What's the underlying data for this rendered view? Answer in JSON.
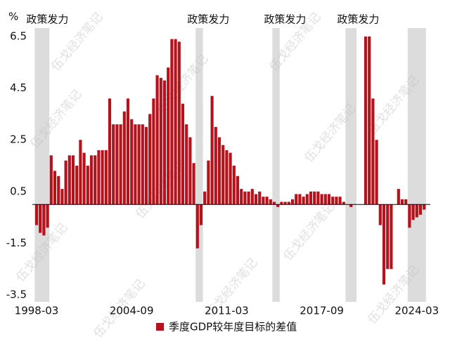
{
  "chart_data": {
    "type": "bar",
    "y_label": "%",
    "legend": "季度GDP较年度目标的差值",
    "watermark": "伍戈经济笔记",
    "color": "#b5121b",
    "shade_color": "#dcdcdc",
    "ylim": [
      -3.5,
      6.5
    ],
    "yticks": [
      -3.5,
      -1.5,
      0.5,
      2.5,
      4.5,
      6.5
    ],
    "shaded": [
      {
        "range": [
          0,
          3
        ],
        "label": "政策发力"
      },
      {
        "range": [
          44,
          45
        ],
        "label": "政策发力"
      },
      {
        "range": [
          65,
          66
        ],
        "label": "政策发力"
      },
      {
        "range": [
          85,
          87
        ],
        "label": "政策发力"
      },
      {
        "range": [
          102,
          106
        ]
      }
    ],
    "categories": [
      "1998-03",
      null,
      null,
      null,
      null,
      null,
      null,
      null,
      null,
      null,
      null,
      null,
      null,
      null,
      null,
      null,
      null,
      null,
      null,
      null,
      null,
      null,
      null,
      null,
      null,
      null,
      "2004-09",
      null,
      null,
      null,
      null,
      null,
      null,
      null,
      null,
      null,
      null,
      null,
      null,
      null,
      null,
      null,
      null,
      null,
      null,
      null,
      null,
      null,
      null,
      null,
      null,
      null,
      "2011-03",
      null,
      null,
      null,
      null,
      null,
      null,
      null,
      null,
      null,
      null,
      null,
      null,
      null,
      null,
      null,
      null,
      null,
      null,
      null,
      null,
      null,
      null,
      null,
      null,
      null,
      "2017-09",
      null,
      null,
      null,
      null,
      null,
      null,
      null,
      null,
      null,
      null,
      null,
      null,
      null,
      null,
      null,
      null,
      null,
      null,
      null,
      null,
      null,
      null,
      null,
      null,
      null,
      "2024-03",
      null,
      null
    ],
    "values": [
      -0.8,
      -1.1,
      -1.2,
      -0.9,
      1.9,
      1.3,
      1.1,
      0.6,
      1.7,
      1.9,
      1.9,
      1.5,
      2.5,
      2.0,
      1.5,
      1.9,
      1.9,
      2.1,
      2.1,
      2.1,
      4.1,
      3.1,
      3.1,
      3.1,
      3.6,
      4.1,
      3.3,
      3.1,
      3.1,
      3.1,
      3.0,
      3.5,
      4.1,
      5.0,
      4.9,
      4.8,
      5.3,
      6.4,
      6.4,
      6.3,
      3.9,
      3.1,
      2.6,
      1.6,
      -1.7,
      -0.8,
      0.5,
      1.7,
      4.2,
      3.0,
      2.6,
      2.3,
      2.1,
      2.0,
      1.5,
      1.1,
      0.6,
      0.5,
      0.5,
      0.6,
      0.4,
      0.5,
      0.3,
      0.3,
      0.2,
      0.1,
      -0.1,
      0.1,
      0.1,
      0.1,
      0.2,
      0.4,
      0.4,
      0.3,
      0.4,
      0.5,
      0.5,
      0.5,
      0.4,
      0.4,
      0.4,
      0.3,
      0.3,
      0.3,
      0.1,
      0,
      -0.1,
      0,
      0,
      0,
      6.5,
      6.5,
      4.1,
      2.5,
      -0.8,
      -3.1,
      -2.5,
      -2.5,
      0,
      0.6,
      0.2,
      0.2,
      -0.9,
      -0.6,
      -0.5,
      -0.4,
      -0.2
    ]
  }
}
